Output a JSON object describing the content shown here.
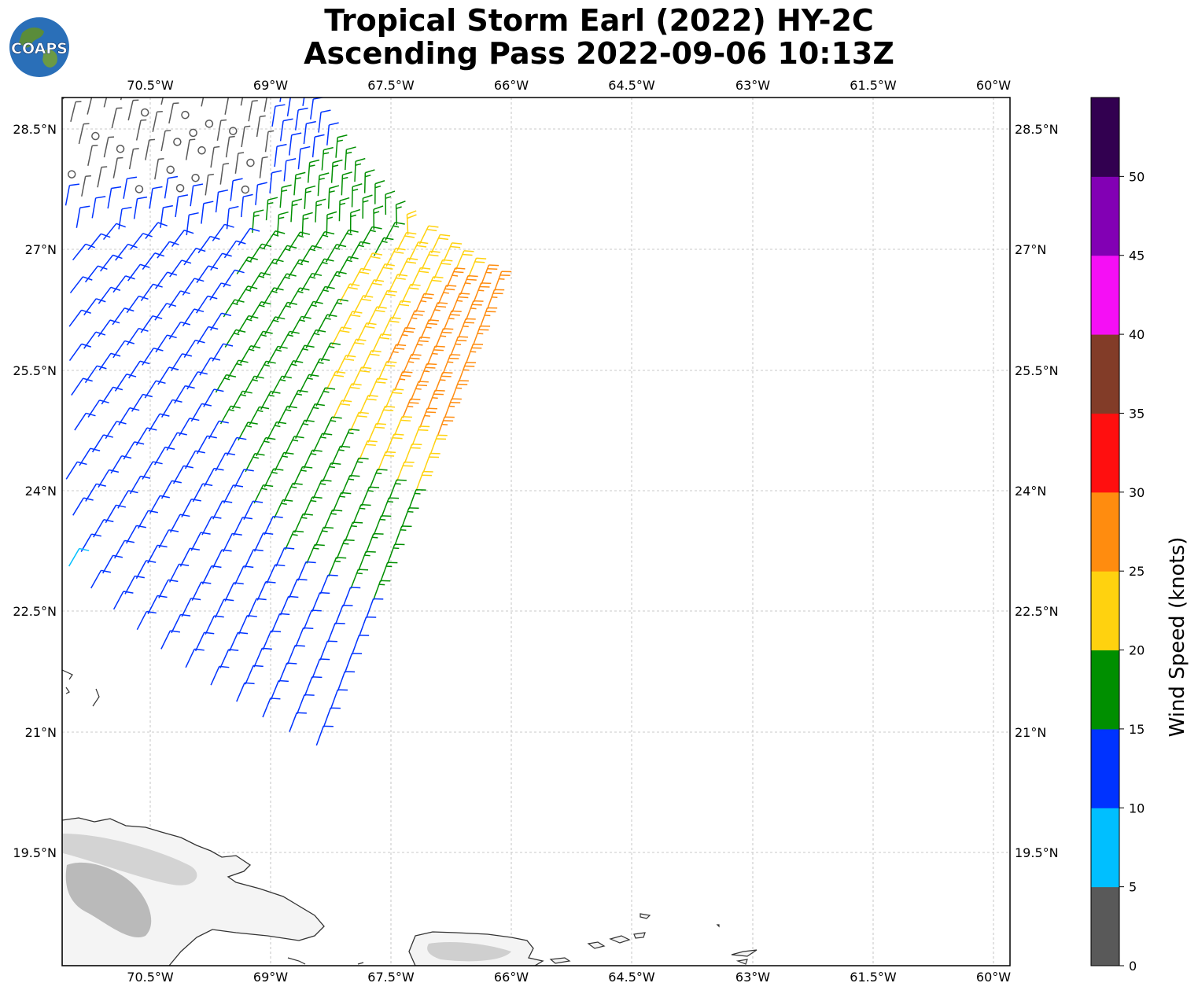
{
  "title_line1": "Tropical Storm Earl (2022) HY-2C",
  "title_line2": "Ascending Pass 2022-09-06 10:13Z",
  "logo_text": "COAPS",
  "map": {
    "lon_ticks": [
      "70.5°W",
      "69°W",
      "67.5°W",
      "66°W",
      "64.5°W",
      "63°W",
      "61.5°W",
      "60°W"
    ],
    "lat_ticks": [
      "28.5°N",
      "27°N",
      "25.5°N",
      "24°N",
      "22.5°N",
      "21°N",
      "19.5°N"
    ],
    "lon_range": [
      -71.6,
      -59.8
    ],
    "lat_range": [
      18.1,
      28.9
    ],
    "land_regions": [
      "Hispaniola",
      "Puerto Rico",
      "Virgin Islands"
    ]
  },
  "colorbar": {
    "label": "Wind Speed (knots)",
    "ticks": [
      "0",
      "5",
      "10",
      "15",
      "20",
      "25",
      "30",
      "35",
      "40",
      "45",
      "50"
    ],
    "bins": [
      {
        "min": 0,
        "max": 5,
        "color": "#595959"
      },
      {
        "min": 5,
        "max": 10,
        "color": "#00bfff"
      },
      {
        "min": 10,
        "max": 15,
        "color": "#0033ff"
      },
      {
        "min": 15,
        "max": 20,
        "color": "#008f00"
      },
      {
        "min": 20,
        "max": 25,
        "color": "#ffd20f"
      },
      {
        "min": 25,
        "max": 30,
        "color": "#ff8c0f"
      },
      {
        "min": 30,
        "max": 35,
        "color": "#ff0f0f"
      },
      {
        "min": 35,
        "max": 40,
        "color": "#823c28"
      },
      {
        "min": 40,
        "max": 45,
        "color": "#f50ff5"
      },
      {
        "min": 45,
        "max": 50,
        "color": "#8200b4"
      },
      {
        "min": 50,
        "max": 55,
        "color": "#320050"
      }
    ]
  }
}
